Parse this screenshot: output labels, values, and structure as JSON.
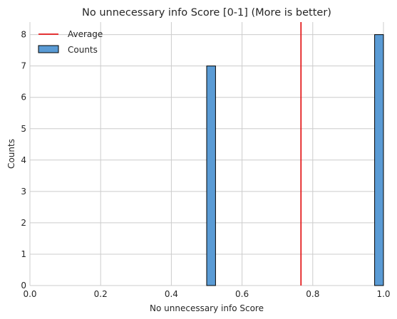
{
  "chart_data": {
    "type": "bar",
    "title": "No unnecessary info Score [0-1] (More is better)",
    "xlabel": "No unnecessary info Score",
    "ylabel": "Counts",
    "xlim": [
      0,
      1
    ],
    "ylim": [
      0,
      8.4
    ],
    "xticks": [
      "0.0",
      "0.2",
      "0.4",
      "0.6",
      "0.8",
      "1.0"
    ],
    "yticks": [
      "0",
      "1",
      "2",
      "3",
      "4",
      "5",
      "6",
      "7",
      "8"
    ],
    "bins": [
      {
        "x0": 0.5,
        "x1": 0.525,
        "count": 7
      },
      {
        "x0": 0.975,
        "x1": 1.0,
        "count": 8
      }
    ],
    "average": 0.7667,
    "grid": true,
    "legend_placement": "top-left",
    "legend": [
      {
        "label": "Average",
        "kind": "line",
        "color": "#e41a1c"
      },
      {
        "label": "Counts",
        "kind": "patch",
        "color": "#5a9bd5"
      }
    ],
    "colors": {
      "bar_fill": "#5a9bd5",
      "bar_edge": "#000000",
      "average_line": "#e41a1c"
    }
  }
}
